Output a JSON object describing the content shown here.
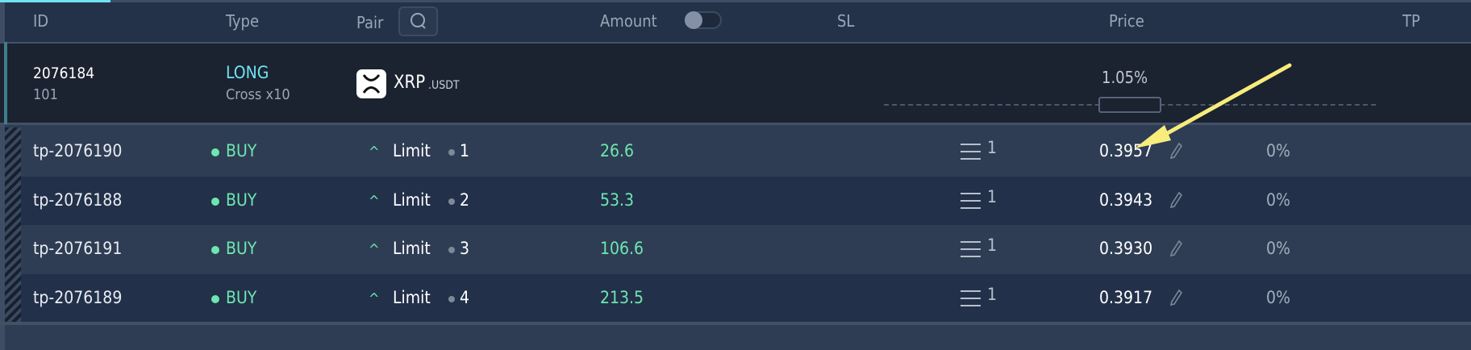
{
  "header": {
    "id": "ID",
    "type": "Type",
    "pair": "Pair",
    "amount": "Amount",
    "sl": "SL",
    "price": "Price",
    "tp": "TP"
  },
  "position": {
    "id": "2076184",
    "sub_id": "101",
    "side": "LONG",
    "margin": "Cross x10",
    "pair_base": "XRP",
    "pair_quote": ".USDT",
    "price_offset": "1.05%"
  },
  "orders": [
    {
      "id": "tp-2076190",
      "side": "BUY",
      "order_type": "Limit",
      "index": "1",
      "amount": "26.6",
      "sl_count": "1",
      "price": "0.3957",
      "tp": "0%"
    },
    {
      "id": "tp-2076188",
      "side": "BUY",
      "order_type": "Limit",
      "index": "2",
      "amount": "53.3",
      "sl_count": "1",
      "price": "0.3943",
      "tp": "0%"
    },
    {
      "id": "tp-2076191",
      "side": "BUY",
      "order_type": "Limit",
      "index": "3",
      "amount": "106.6",
      "sl_count": "1",
      "price": "0.3930",
      "tp": "0%"
    },
    {
      "id": "tp-2076189",
      "side": "BUY",
      "order_type": "Limit",
      "index": "4",
      "amount": "213.5",
      "sl_count": "1",
      "price": "0.3917",
      "tp": "0%"
    }
  ],
  "colors": {
    "long": "#6fe3f0",
    "buy": "#6ee6b0",
    "annotation_arrow": "#f7ec7c"
  },
  "amount_toggle_on": false
}
